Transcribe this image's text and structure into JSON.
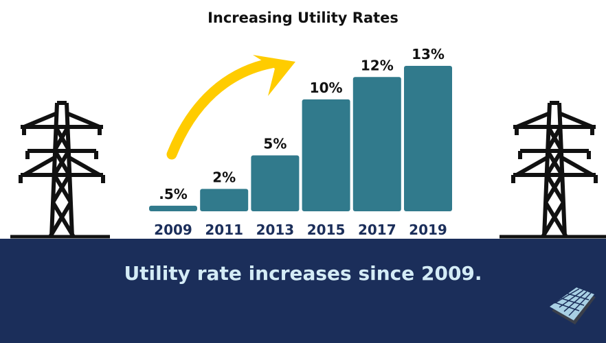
{
  "chart_data": {
    "type": "bar",
    "title": "Increasing Utility Rates",
    "categories": [
      "2009",
      "2011",
      "2013",
      "2015",
      "2017",
      "2019"
    ],
    "values": [
      0.5,
      2,
      5,
      10,
      12,
      13
    ],
    "data_labels": [
      ".5%",
      "2%",
      "5%",
      "10%",
      "12%",
      "13%"
    ],
    "xlabel": "",
    "ylabel": "",
    "ylim": [
      0,
      13
    ],
    "grid": false,
    "colors": {
      "bar": "#317a8c",
      "arrow": "#ffcc00",
      "tick_label": "#1b2e5a",
      "data_label": "#111111"
    }
  },
  "banner": {
    "text": "Utility rate increases since 2009.",
    "color": "#1b2e5a"
  },
  "decorations": {
    "left_icon": "power-tower-icon",
    "right_icon": "power-tower-icon",
    "logo": "solar-panel-icon"
  }
}
